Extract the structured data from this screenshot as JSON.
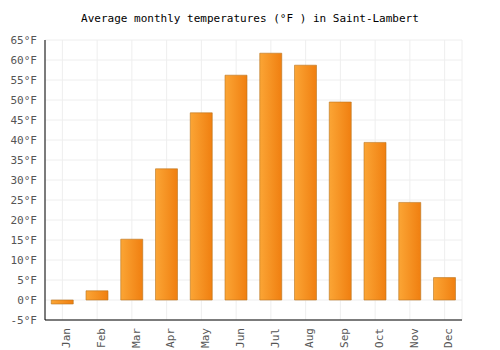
{
  "chart_data": {
    "type": "bar",
    "title": "Average monthly temperatures (°F ) in Saint-Lambert",
    "categories": [
      "Jan",
      "Feb",
      "Mar",
      "Apr",
      "May",
      "Jun",
      "Jul",
      "Aug",
      "Sep",
      "Oct",
      "Nov",
      "Dec"
    ],
    "values": [
      -1,
      2.3,
      15.2,
      32.8,
      46.8,
      56.2,
      61.7,
      58.7,
      49.5,
      39.4,
      24.4,
      5.6
    ],
    "color": "#fba535",
    "ylim": [
      -5,
      65
    ],
    "yticks": [
      {
        "value": -5,
        "label": "-5°F"
      },
      {
        "value": 0,
        "label": "0°F"
      },
      {
        "value": 5,
        "label": "5°F"
      },
      {
        "value": 10,
        "label": "10°F"
      },
      {
        "value": 15,
        "label": "15°F"
      },
      {
        "value": 20,
        "label": "20°F"
      },
      {
        "value": 25,
        "label": "25°F"
      },
      {
        "value": 30,
        "label": "30°F"
      },
      {
        "value": 35,
        "label": "35°F"
      },
      {
        "value": 40,
        "label": "40°F"
      },
      {
        "value": 45,
        "label": "45°F"
      },
      {
        "value": 50,
        "label": "50°F"
      },
      {
        "value": 55,
        "label": "55°F"
      },
      {
        "value": 60,
        "label": "60°F"
      },
      {
        "value": 65,
        "label": "65°F"
      }
    ],
    "grid": true
  }
}
